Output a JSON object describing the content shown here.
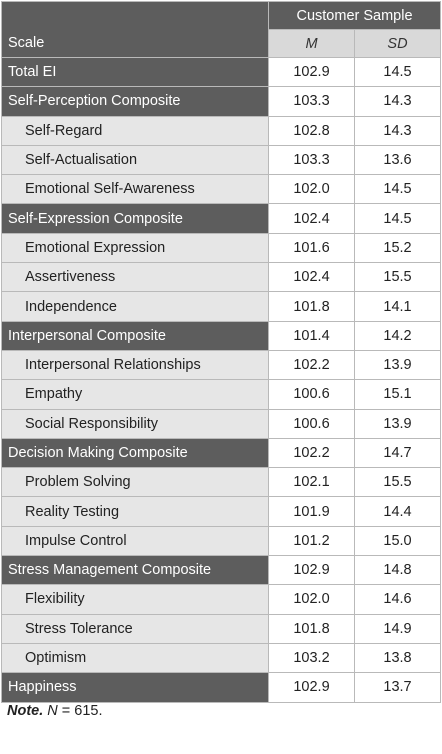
{
  "header": {
    "scale_label": "Scale",
    "group_label": "Customer Sample",
    "col_m": "M",
    "col_sd": "SD"
  },
  "rows": [
    {
      "label": "Total EI",
      "m": "102.9",
      "sd": "14.5",
      "kind": "composite"
    },
    {
      "label": "Self-Perception Composite",
      "m": "103.3",
      "sd": "14.3",
      "kind": "composite"
    },
    {
      "label": "Self-Regard",
      "m": "102.8",
      "sd": "14.3",
      "kind": "subscale"
    },
    {
      "label": "Self-Actualisation",
      "m": "103.3",
      "sd": "13.6",
      "kind": "subscale"
    },
    {
      "label": "Emotional Self-Awareness",
      "m": "102.0",
      "sd": "14.5",
      "kind": "subscale"
    },
    {
      "label": "Self-Expression Composite",
      "m": "102.4",
      "sd": "14.5",
      "kind": "composite"
    },
    {
      "label": "Emotional Expression",
      "m": "101.6",
      "sd": "15.2",
      "kind": "subscale"
    },
    {
      "label": "Assertiveness",
      "m": "102.4",
      "sd": "15.5",
      "kind": "subscale"
    },
    {
      "label": "Independence",
      "m": "101.8",
      "sd": "14.1",
      "kind": "subscale"
    },
    {
      "label": "Interpersonal Composite",
      "m": "101.4",
      "sd": "14.2",
      "kind": "composite"
    },
    {
      "label": "Interpersonal Relationships",
      "m": "102.2",
      "sd": "13.9",
      "kind": "subscale"
    },
    {
      "label": "Empathy",
      "m": "100.6",
      "sd": "15.1",
      "kind": "subscale"
    },
    {
      "label": "Social Responsibility",
      "m": "100.6",
      "sd": "13.9",
      "kind": "subscale"
    },
    {
      "label": "Decision Making Composite",
      "m": "102.2",
      "sd": "14.7",
      "kind": "composite"
    },
    {
      "label": "Problem Solving",
      "m": "102.1",
      "sd": "15.5",
      "kind": "subscale"
    },
    {
      "label": "Reality Testing",
      "m": "101.9",
      "sd": "14.4",
      "kind": "subscale"
    },
    {
      "label": "Impulse Control",
      "m": "101.2",
      "sd": "15.0",
      "kind": "subscale"
    },
    {
      "label": "Stress Management Composite",
      "m": "102.9",
      "sd": "14.8",
      "kind": "composite"
    },
    {
      "label": "Flexibility",
      "m": "102.0",
      "sd": "14.6",
      "kind": "subscale"
    },
    {
      "label": "Stress Tolerance",
      "m": "101.8",
      "sd": "14.9",
      "kind": "subscale"
    },
    {
      "label": "Optimism",
      "m": "103.2",
      "sd": "13.8",
      "kind": "subscale"
    },
    {
      "label": "Happiness",
      "m": "102.9",
      "sd": "13.7",
      "kind": "composite"
    }
  ],
  "note": {
    "prefix": "Note.",
    "n_symbol": "N",
    "text": " = 615."
  },
  "colors": {
    "composite_bg": "#5d5d5d",
    "subscale_bg": "#e6e6e6",
    "subheader_bg": "#d9d9d9"
  }
}
